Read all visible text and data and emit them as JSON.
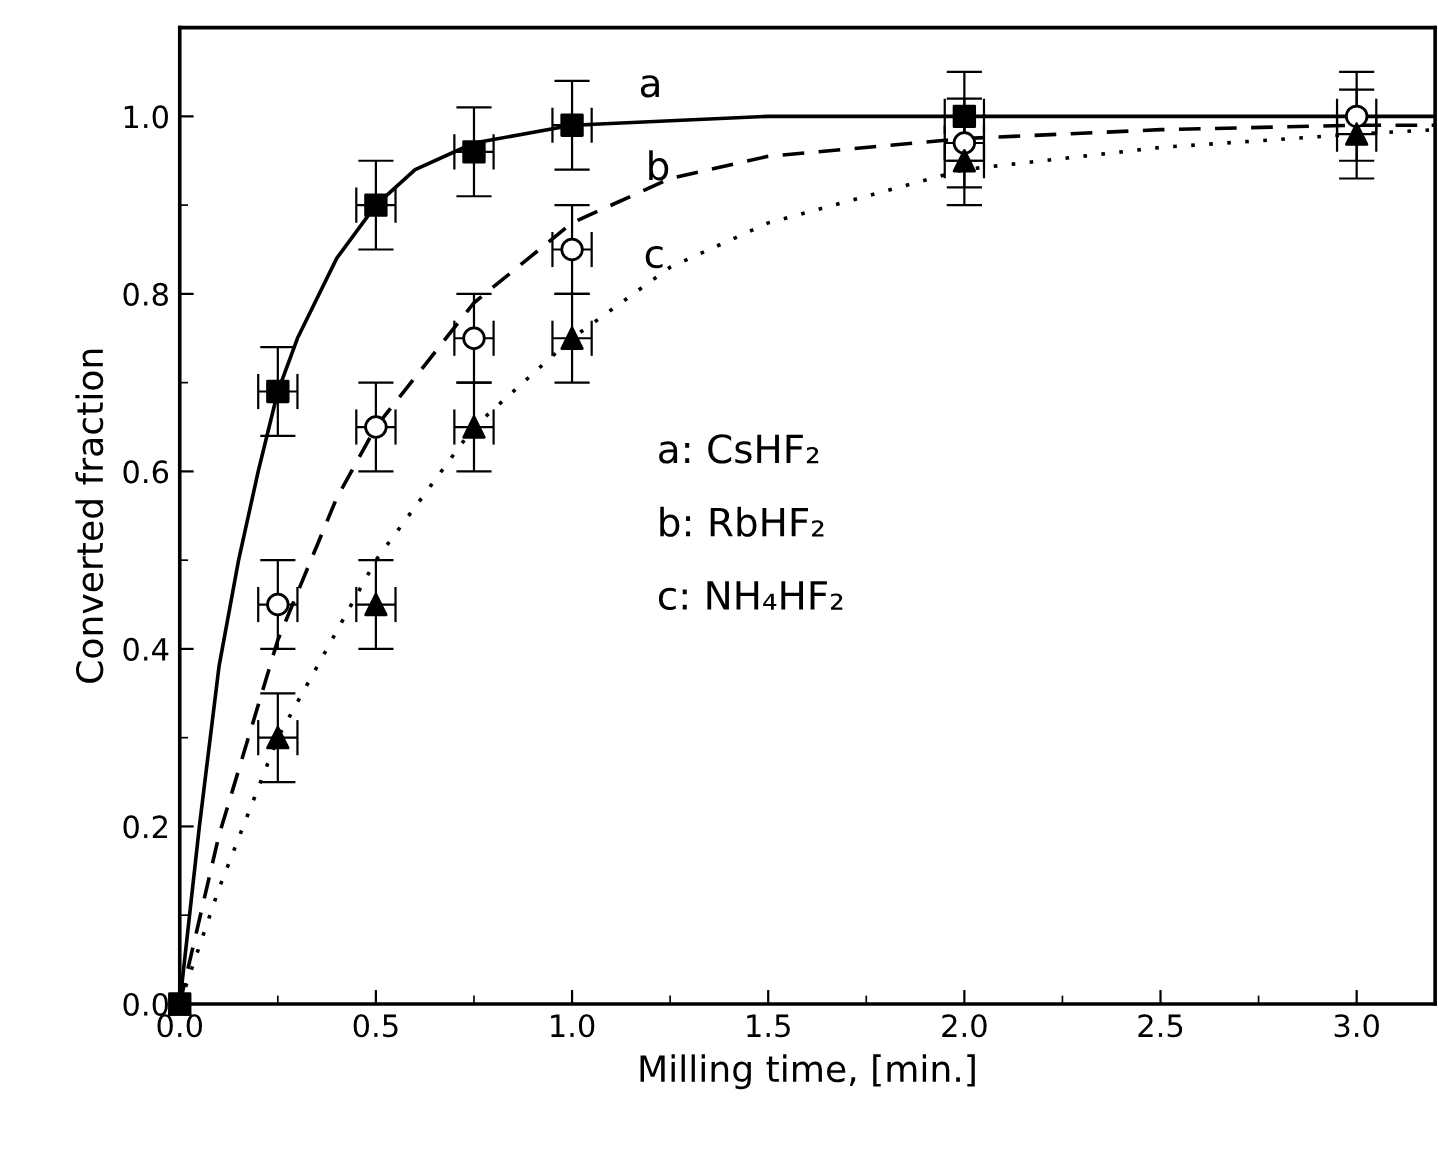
{
  "chart_data": {
    "type": "scatter",
    "xlabel": "Milling time, [min.]",
    "ylabel": "Converted fraction",
    "xlim": [
      0,
      3.2
    ],
    "ylim": [
      0,
      1.1
    ],
    "xticks": [
      {
        "value": 0,
        "label": "0.0"
      },
      {
        "value": 0.5,
        "label": "0.5"
      },
      {
        "value": 1,
        "label": "1.0"
      },
      {
        "value": 1.5,
        "label": "1.5"
      },
      {
        "value": 2,
        "label": "2.0"
      },
      {
        "value": 2.5,
        "label": "2.5"
      },
      {
        "value": 3,
        "label": "3.0"
      }
    ],
    "yticks": [
      {
        "value": 0,
        "label": "0.0"
      },
      {
        "value": 0.2,
        "label": "0.2"
      },
      {
        "value": 0.4,
        "label": "0.4"
      },
      {
        "value": 0.6,
        "label": "0.6"
      },
      {
        "value": 0.8,
        "label": "0.8"
      },
      {
        "value": 1,
        "label": "1.0"
      }
    ],
    "grid": false,
    "legend": false,
    "series": [
      {
        "marker": "square",
        "color": "#000000",
        "x": [
          0,
          0.25,
          0.5,
          0.75,
          1.0,
          2.0
        ],
        "values": [
          0,
          0.69,
          0.9,
          0.96,
          0.99,
          1.0
        ],
        "errors": [
          null,
          0.05,
          0.05,
          0.05,
          0.05,
          0.05
        ],
        "xerrors": [
          null,
          0.05,
          0.05,
          0.05,
          0.05,
          0.05
        ]
      },
      {
        "marker": "circle",
        "color": "#000000",
        "x": [
          0.25,
          0.5,
          0.75,
          1.0,
          2.0,
          3.0
        ],
        "values": [
          0.45,
          0.65,
          0.75,
          0.85,
          0.97,
          1.0
        ],
        "errors": [
          0.05,
          0.05,
          0.05,
          0.05,
          0.05,
          0.05
        ],
        "xerrors": [
          0.05,
          0.05,
          0.05,
          0.05,
          0.05,
          0.05
        ]
      },
      {
        "marker": "triangle",
        "color": "#000000",
        "x": [
          0,
          0.25,
          0.5,
          0.75,
          1.0,
          2.0,
          3.0
        ],
        "values": [
          0,
          0.3,
          0.45,
          0.65,
          0.75,
          0.95,
          0.98
        ],
        "errors": [
          null,
          0.05,
          0.05,
          0.05,
          0.05,
          0.05,
          0.05
        ],
        "xerrors": [
          null,
          0.05,
          0.05,
          0.05,
          0.05,
          0.05,
          0.05
        ]
      },
      {
        "type": "line",
        "line_style": "solid",
        "color": "#000000",
        "x": [
          0,
          0.05,
          0.1,
          0.15,
          0.2,
          0.25,
          0.3,
          0.4,
          0.5,
          0.6,
          0.75,
          1.0,
          1.5,
          3.2
        ],
        "values": [
          0,
          0.2,
          0.38,
          0.5,
          0.6,
          0.69,
          0.75,
          0.84,
          0.9,
          0.94,
          0.97,
          0.99,
          1.0,
          1.0
        ]
      },
      {
        "type": "line",
        "line_style": "dashed",
        "color": "#000000",
        "x": [
          0,
          0.1,
          0.25,
          0.4,
          0.5,
          0.75,
          1.0,
          1.25,
          1.5,
          2.0,
          2.5,
          3.0,
          3.2
        ],
        "values": [
          0,
          0.19,
          0.41,
          0.57,
          0.65,
          0.79,
          0.88,
          0.93,
          0.955,
          0.975,
          0.985,
          0.99,
          0.99
        ]
      },
      {
        "type": "line",
        "line_style": "dotted",
        "color": "#000000",
        "x": [
          0,
          0.1,
          0.25,
          0.5,
          0.75,
          1.0,
          1.25,
          1.5,
          2.0,
          2.5,
          3.0,
          3.2
        ],
        "values": [
          0,
          0.13,
          0.3,
          0.5,
          0.65,
          0.75,
          0.83,
          0.88,
          0.94,
          0.965,
          0.98,
          0.985
        ]
      }
    ],
    "annotations": [
      "a",
      "b",
      "c",
      "a: CsHF₂",
      "b: RbHF₂",
      "c: NH₄HF₂"
    ]
  }
}
